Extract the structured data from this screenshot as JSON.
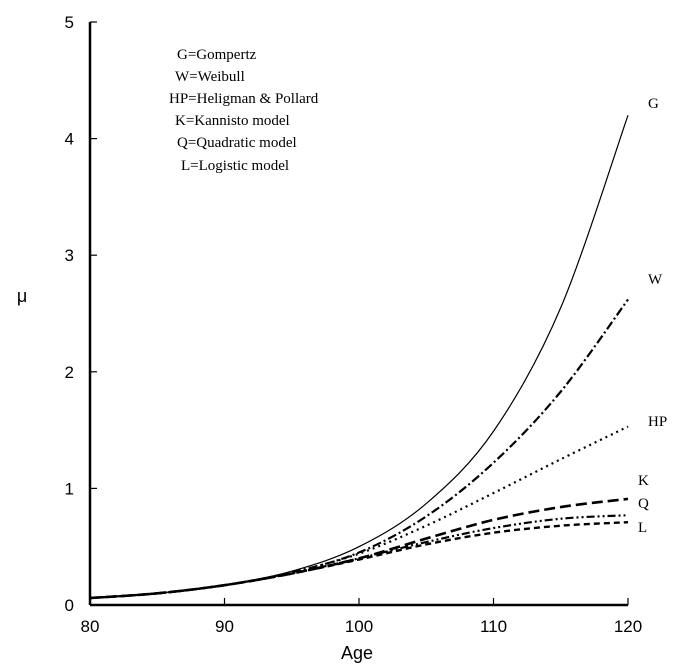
{
  "chart_data": {
    "type": "line",
    "xlabel": "Age",
    "ylabel": "μ",
    "xlim": [
      80,
      120
    ],
    "ylim": [
      0,
      5
    ],
    "xticks": [
      "80",
      "90",
      "100",
      "110",
      "120"
    ],
    "yticks": [
      "0",
      "1",
      "2",
      "3",
      "4",
      "5"
    ],
    "grid": false,
    "legend": [
      "G=Gompertz",
      "W=Weibull",
      "HP=Heligman & Pollard",
      "K=Kannisto model",
      "Q=Quadratic model",
      "L=Logistic model"
    ],
    "x": [
      80,
      85,
      90,
      95,
      100,
      105,
      110,
      115,
      120
    ],
    "series": [
      {
        "name": "G",
        "color": "#000000",
        "dash": "solid",
        "values": [
          0.06,
          0.1,
          0.17,
          0.29,
          0.5,
          0.87,
          1.49,
          2.55,
          4.2
        ]
      },
      {
        "name": "W",
        "color": "#000000",
        "dash": "dashdot",
        "values": [
          0.06,
          0.1,
          0.17,
          0.28,
          0.45,
          0.76,
          1.22,
          1.83,
          2.62
        ]
      },
      {
        "name": "HP",
        "color": "#000000",
        "dash": "dotted",
        "values": [
          0.06,
          0.1,
          0.17,
          0.28,
          0.44,
          0.68,
          0.96,
          1.25,
          1.53
        ]
      },
      {
        "name": "K",
        "color": "#000000",
        "dash": "longdash",
        "values": [
          0.06,
          0.1,
          0.17,
          0.27,
          0.4,
          0.57,
          0.73,
          0.84,
          0.91
        ]
      },
      {
        "name": "Q",
        "color": "#000000",
        "dash": "dashdotdot",
        "values": [
          0.06,
          0.1,
          0.17,
          0.27,
          0.4,
          0.54,
          0.66,
          0.74,
          0.77
        ]
      },
      {
        "name": "L",
        "color": "#000000",
        "dash": "shortdash",
        "values": [
          0.06,
          0.1,
          0.17,
          0.27,
          0.39,
          0.52,
          0.62,
          0.68,
          0.71
        ]
      }
    ]
  }
}
